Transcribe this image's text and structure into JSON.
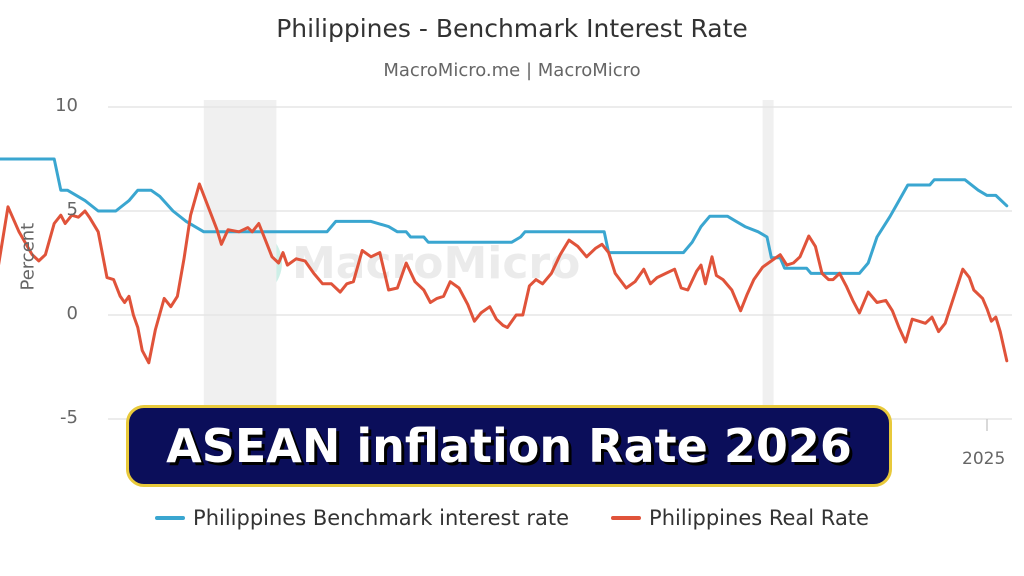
{
  "header": {
    "title": "Philippines - Benchmark Interest Rate",
    "subtitle": "MacroMicro.me | MacroMicro"
  },
  "watermark": {
    "text": "MacroMicro"
  },
  "banner": {
    "text": "ASEAN inflation Rate 2026",
    "bg_color": "#0b0e5a",
    "border_color": "#e8c93b"
  },
  "legend": {
    "items": [
      {
        "label": "Philippines Benchmark interest rate",
        "color": "#3aa6d0"
      },
      {
        "label": "Philippines Real Rate",
        "color": "#e0533a"
      }
    ]
  },
  "axes": {
    "ylabel": "Percent",
    "yticks": [
      "10",
      "5",
      "0",
      "-5"
    ],
    "xticks": [
      "2025"
    ]
  },
  "chart_data": {
    "type": "line",
    "title": "Philippines - Benchmark Interest Rate",
    "subtitle": "MacroMicro.me | MacroMicro",
    "xlabel": "",
    "ylabel": "Percent",
    "ylim": [
      -5,
      10
    ],
    "xlim": [
      2002.0,
      2025.6
    ],
    "yticks": [
      10,
      5,
      0,
      -5
    ],
    "xticks": [
      {
        "label": "2025",
        "x": 2025.0
      }
    ],
    "grid": true,
    "legend_position": "bottom",
    "shaded_regions": [
      [
        2007.2,
        2008.85
      ],
      [
        2019.9,
        2020.15
      ]
    ],
    "series": [
      {
        "name": "Philippines Benchmark interest rate",
        "color": "#3aa6d0",
        "points": [
          [
            2002.2,
            7.5
          ],
          [
            2003.8,
            7.5
          ],
          [
            2003.95,
            6.0
          ],
          [
            2004.1,
            6.0
          ],
          [
            2004.5,
            5.5
          ],
          [
            2004.8,
            5.0
          ],
          [
            2005.2,
            5.0
          ],
          [
            2005.5,
            5.5
          ],
          [
            2005.7,
            6.0
          ],
          [
            2006.0,
            6.0
          ],
          [
            2006.2,
            5.7
          ],
          [
            2006.5,
            5.0
          ],
          [
            2006.8,
            4.5
          ],
          [
            2007.2,
            4.0
          ],
          [
            2008.5,
            4.0
          ],
          [
            2008.8,
            4.0
          ],
          [
            2009.8,
            4.0
          ],
          [
            2010.0,
            4.0
          ],
          [
            2010.2,
            4.5
          ],
          [
            2011.0,
            4.5
          ],
          [
            2011.4,
            4.25
          ],
          [
            2011.6,
            4.0
          ],
          [
            2011.8,
            4.0
          ],
          [
            2011.9,
            3.75
          ],
          [
            2012.2,
            3.75
          ],
          [
            2012.3,
            3.5
          ],
          [
            2014.2,
            3.5
          ],
          [
            2014.4,
            3.75
          ],
          [
            2014.5,
            4.0
          ],
          [
            2016.3,
            4.0
          ],
          [
            2016.4,
            3.0
          ],
          [
            2018.1,
            3.0
          ],
          [
            2018.3,
            3.5
          ],
          [
            2018.5,
            4.25
          ],
          [
            2018.7,
            4.75
          ],
          [
            2019.1,
            4.75
          ],
          [
            2019.3,
            4.5
          ],
          [
            2019.5,
            4.25
          ],
          [
            2019.8,
            4.0
          ],
          [
            2020.0,
            3.75
          ],
          [
            2020.1,
            2.75
          ],
          [
            2020.3,
            2.75
          ],
          [
            2020.4,
            2.25
          ],
          [
            2020.9,
            2.25
          ],
          [
            2021.0,
            2.0
          ],
          [
            2022.1,
            2.0
          ],
          [
            2022.3,
            2.5
          ],
          [
            2022.5,
            3.75
          ],
          [
            2022.8,
            4.75
          ],
          [
            2023.0,
            5.5
          ],
          [
            2023.2,
            6.25
          ],
          [
            2023.7,
            6.25
          ],
          [
            2023.8,
            6.5
          ],
          [
            2024.5,
            6.5
          ],
          [
            2024.8,
            6.0
          ],
          [
            2025.0,
            5.75
          ],
          [
            2025.2,
            5.75
          ],
          [
            2025.45,
            5.25
          ]
        ]
      },
      {
        "name": "Philippines Real Rate",
        "color": "#e0533a",
        "points": [
          [
            2002.2,
            3.9
          ],
          [
            2002.45,
            1.3
          ],
          [
            2002.75,
            5.2
          ],
          [
            2003.0,
            4.0
          ],
          [
            2003.3,
            2.9
          ],
          [
            2003.45,
            2.6
          ],
          [
            2003.6,
            2.9
          ],
          [
            2003.8,
            4.4
          ],
          [
            2003.95,
            4.8
          ],
          [
            2004.05,
            4.4
          ],
          [
            2004.2,
            4.8
          ],
          [
            2004.35,
            4.7
          ],
          [
            2004.5,
            5.0
          ],
          [
            2004.6,
            4.7
          ],
          [
            2004.8,
            4.0
          ],
          [
            2005.0,
            1.8
          ],
          [
            2005.15,
            1.7
          ],
          [
            2005.3,
            0.9
          ],
          [
            2005.4,
            0.6
          ],
          [
            2005.5,
            0.9
          ],
          [
            2005.6,
            0.0
          ],
          [
            2005.7,
            -0.6
          ],
          [
            2005.8,
            -1.7
          ],
          [
            2005.95,
            -2.3
          ],
          [
            2006.1,
            -0.7
          ],
          [
            2006.3,
            0.8
          ],
          [
            2006.45,
            0.4
          ],
          [
            2006.6,
            0.9
          ],
          [
            2006.75,
            2.7
          ],
          [
            2006.9,
            4.8
          ],
          [
            2007.1,
            6.3
          ],
          [
            2007.3,
            5.2
          ],
          [
            2007.5,
            4.1
          ],
          [
            2007.6,
            3.4
          ],
          [
            2007.75,
            4.1
          ],
          [
            2008.0,
            4.0
          ],
          [
            2008.2,
            4.2
          ],
          [
            2008.3,
            4.0
          ],
          [
            2008.45,
            4.4
          ],
          [
            2008.6,
            3.6
          ],
          [
            2008.75,
            2.8
          ],
          [
            2008.9,
            2.5
          ],
          [
            2009.0,
            3.0
          ],
          [
            2009.1,
            2.4
          ],
          [
            2009.3,
            2.7
          ],
          [
            2009.5,
            2.6
          ],
          [
            2009.7,
            2.0
          ],
          [
            2009.9,
            1.5
          ],
          [
            2010.1,
            1.5
          ],
          [
            2010.3,
            1.1
          ],
          [
            2010.45,
            1.5
          ],
          [
            2010.6,
            1.6
          ],
          [
            2010.8,
            3.1
          ],
          [
            2011.0,
            2.8
          ],
          [
            2011.2,
            3.0
          ],
          [
            2011.4,
            1.2
          ],
          [
            2011.6,
            1.3
          ],
          [
            2011.8,
            2.5
          ],
          [
            2012.0,
            1.6
          ],
          [
            2012.2,
            1.2
          ],
          [
            2012.35,
            0.6
          ],
          [
            2012.5,
            0.8
          ],
          [
            2012.65,
            0.9
          ],
          [
            2012.8,
            1.6
          ],
          [
            2013.0,
            1.3
          ],
          [
            2013.2,
            0.5
          ],
          [
            2013.35,
            -0.3
          ],
          [
            2013.5,
            0.1
          ],
          [
            2013.7,
            0.4
          ],
          [
            2013.85,
            -0.2
          ],
          [
            2014.0,
            -0.5
          ],
          [
            2014.1,
            -0.6
          ],
          [
            2014.3,
            0.0
          ],
          [
            2014.45,
            0.0
          ],
          [
            2014.6,
            1.4
          ],
          [
            2014.75,
            1.7
          ],
          [
            2014.9,
            1.5
          ],
          [
            2015.1,
            2.0
          ],
          [
            2015.3,
            2.9
          ],
          [
            2015.5,
            3.6
          ],
          [
            2015.7,
            3.3
          ],
          [
            2015.9,
            2.8
          ],
          [
            2016.1,
            3.2
          ],
          [
            2016.25,
            3.4
          ],
          [
            2016.4,
            3.0
          ],
          [
            2016.55,
            2.0
          ],
          [
            2016.8,
            1.3
          ],
          [
            2017.0,
            1.6
          ],
          [
            2017.2,
            2.2
          ],
          [
            2017.35,
            1.5
          ],
          [
            2017.5,
            1.8
          ],
          [
            2017.7,
            2.0
          ],
          [
            2017.9,
            2.2
          ],
          [
            2018.05,
            1.3
          ],
          [
            2018.2,
            1.2
          ],
          [
            2018.4,
            2.1
          ],
          [
            2018.5,
            2.4
          ],
          [
            2018.6,
            1.5
          ],
          [
            2018.75,
            2.8
          ],
          [
            2018.85,
            1.9
          ],
          [
            2019.0,
            1.7
          ],
          [
            2019.2,
            1.2
          ],
          [
            2019.4,
            0.2
          ],
          [
            2019.55,
            1.0
          ],
          [
            2019.7,
            1.7
          ],
          [
            2019.9,
            2.3
          ],
          [
            2020.1,
            2.6
          ],
          [
            2020.3,
            2.9
          ],
          [
            2020.45,
            2.4
          ],
          [
            2020.6,
            2.5
          ],
          [
            2020.75,
            2.8
          ],
          [
            2020.95,
            3.8
          ],
          [
            2021.1,
            3.3
          ],
          [
            2021.25,
            2.0
          ],
          [
            2021.4,
            1.7
          ],
          [
            2021.5,
            1.7
          ],
          [
            2021.65,
            2.0
          ],
          [
            2021.8,
            1.4
          ],
          [
            2021.95,
            0.7
          ],
          [
            2022.1,
            0.1
          ],
          [
            2022.3,
            1.1
          ],
          [
            2022.5,
            0.6
          ],
          [
            2022.7,
            0.7
          ],
          [
            2022.85,
            0.2
          ],
          [
            2023.0,
            -0.6
          ],
          [
            2023.15,
            -1.3
          ],
          [
            2023.3,
            -0.2
          ],
          [
            2023.45,
            -0.3
          ],
          [
            2023.6,
            -0.4
          ],
          [
            2023.75,
            -0.1
          ],
          [
            2023.9,
            -0.8
          ],
          [
            2024.05,
            -0.4
          ],
          [
            2024.25,
            0.9
          ],
          [
            2024.45,
            2.2
          ],
          [
            2024.6,
            1.8
          ],
          [
            2024.7,
            1.2
          ],
          [
            2024.9,
            0.8
          ],
          [
            2025.0,
            0.3
          ],
          [
            2025.1,
            -0.3
          ],
          [
            2025.2,
            -0.1
          ],
          [
            2025.3,
            -0.8
          ],
          [
            2025.45,
            -2.2
          ]
        ]
      }
    ]
  }
}
